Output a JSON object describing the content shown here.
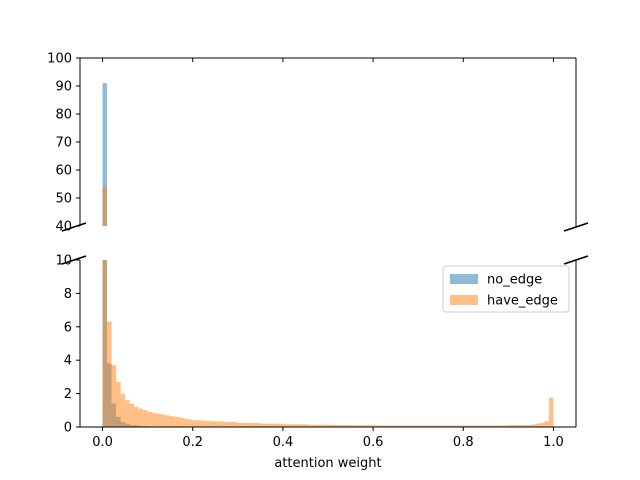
{
  "chart_data": {
    "type": "bar",
    "subtype": "broken-axis-overlapping-histogram",
    "xlabel": "attention weight",
    "ylabel": "",
    "xlim": [
      -0.05,
      1.05
    ],
    "x_ticks": [
      0.0,
      0.2,
      0.4,
      0.6,
      0.8,
      1.0
    ],
    "x_tick_labels": [
      "0.0",
      "0.2",
      "0.4",
      "0.6",
      "0.8",
      "1.0"
    ],
    "upper_ylim": [
      40,
      100
    ],
    "upper_y_ticks": [
      40,
      50,
      60,
      70,
      80,
      90,
      100
    ],
    "upper_y_tick_labels": [
      "40",
      "50",
      "60",
      "70",
      "80",
      "90",
      "100"
    ],
    "lower_ylim": [
      0,
      10
    ],
    "lower_y_ticks": [
      0,
      2,
      4,
      6,
      8,
      10
    ],
    "lower_y_tick_labels": [
      "0",
      "2",
      "4",
      "6",
      "8",
      "10"
    ],
    "bin_width": 0.01,
    "bin_starts": [
      0.0,
      0.01,
      0.02,
      0.03,
      0.04,
      0.05,
      0.06,
      0.07,
      0.08,
      0.09,
      0.1,
      0.11,
      0.12,
      0.13,
      0.14,
      0.15,
      0.16,
      0.17,
      0.18,
      0.19,
      0.2,
      0.22,
      0.24,
      0.26,
      0.28,
      0.3,
      0.35,
      0.4,
      0.45,
      0.5,
      0.55,
      0.6,
      0.65,
      0.7,
      0.75,
      0.8,
      0.85,
      0.9,
      0.95,
      0.96,
      0.97,
      0.98,
      0.99
    ],
    "bin_ends": [
      0.01,
      0.02,
      0.03,
      0.04,
      0.05,
      0.06,
      0.07,
      0.08,
      0.09,
      0.1,
      0.11,
      0.12,
      0.13,
      0.14,
      0.15,
      0.16,
      0.17,
      0.18,
      0.19,
      0.2,
      0.22,
      0.24,
      0.26,
      0.28,
      0.3,
      0.35,
      0.4,
      0.45,
      0.5,
      0.55,
      0.6,
      0.65,
      0.7,
      0.75,
      0.8,
      0.85,
      0.9,
      0.95,
      0.96,
      0.97,
      0.98,
      0.99,
      1.0
    ],
    "series": [
      {
        "name": "no_edge",
        "color": "#1f77b4",
        "alpha": 0.5,
        "values": [
          91,
          3.8,
          1.4,
          0.6,
          0.3,
          0.2,
          0.1,
          0.1,
          0.05,
          0.05,
          0.03,
          0.03,
          0.02,
          0.02,
          0.02,
          0.01,
          0.01,
          0.01,
          0.01,
          0.01,
          0,
          0,
          0,
          0,
          0,
          0,
          0,
          0,
          0,
          0,
          0,
          0,
          0,
          0,
          0,
          0,
          0,
          0,
          0,
          0,
          0,
          0,
          0
        ]
      },
      {
        "name": "have_edge",
        "color": "#ff7f0e",
        "alpha": 0.5,
        "values": [
          54,
          6.3,
          3.7,
          2.7,
          2.0,
          1.6,
          1.4,
          1.2,
          1.1,
          1.0,
          0.9,
          0.85,
          0.8,
          0.75,
          0.7,
          0.65,
          0.6,
          0.55,
          0.5,
          0.45,
          0.4,
          0.37,
          0.34,
          0.32,
          0.3,
          0.25,
          0.2,
          0.17,
          0.14,
          0.12,
          0.11,
          0.1,
          0.1,
          0.1,
          0.1,
          0.1,
          0.1,
          0.12,
          0.15,
          0.2,
          0.25,
          0.35,
          1.75
        ]
      }
    ],
    "legend": {
      "placement": "upper-right of lower panel",
      "entries": [
        "no_edge",
        "have_edge"
      ]
    },
    "grid": false
  }
}
